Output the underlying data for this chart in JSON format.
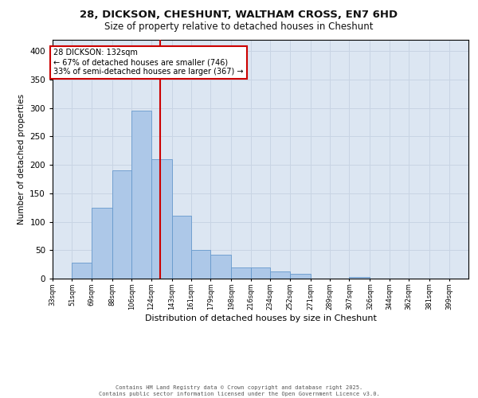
{
  "title_line1": "28, DICKSON, CHESHUNT, WALTHAM CROSS, EN7 6HD",
  "title_line2": "Size of property relative to detached houses in Cheshunt",
  "xlabel": "Distribution of detached houses by size in Cheshunt",
  "ylabel": "Number of detached properties",
  "bin_edges": [
    33,
    51,
    69,
    88,
    106,
    124,
    143,
    161,
    179,
    198,
    216,
    234,
    252,
    271,
    289,
    307,
    326,
    344,
    362,
    381,
    399
  ],
  "bin_counts": [
    0,
    28,
    125,
    190,
    295,
    210,
    110,
    50,
    42,
    20,
    20,
    13,
    9,
    0,
    0,
    3,
    0,
    0,
    0,
    0
  ],
  "bar_color": "#adc8e8",
  "bar_edge_color": "#6699cc",
  "annotation_text": "28 DICKSON: 132sqm\n← 67% of detached houses are smaller (746)\n33% of semi-detached houses are larger (367) →",
  "vline_x": 132,
  "vline_color": "#cc0000",
  "ylim": [
    0,
    420
  ],
  "yticks": [
    0,
    50,
    100,
    150,
    200,
    250,
    300,
    350,
    400
  ],
  "grid_color": "#c8d4e4",
  "bg_color": "#dce6f2",
  "footer_text": "Contains HM Land Registry data © Crown copyright and database right 2025.\nContains public sector information licensed under the Open Government Licence v3.0."
}
